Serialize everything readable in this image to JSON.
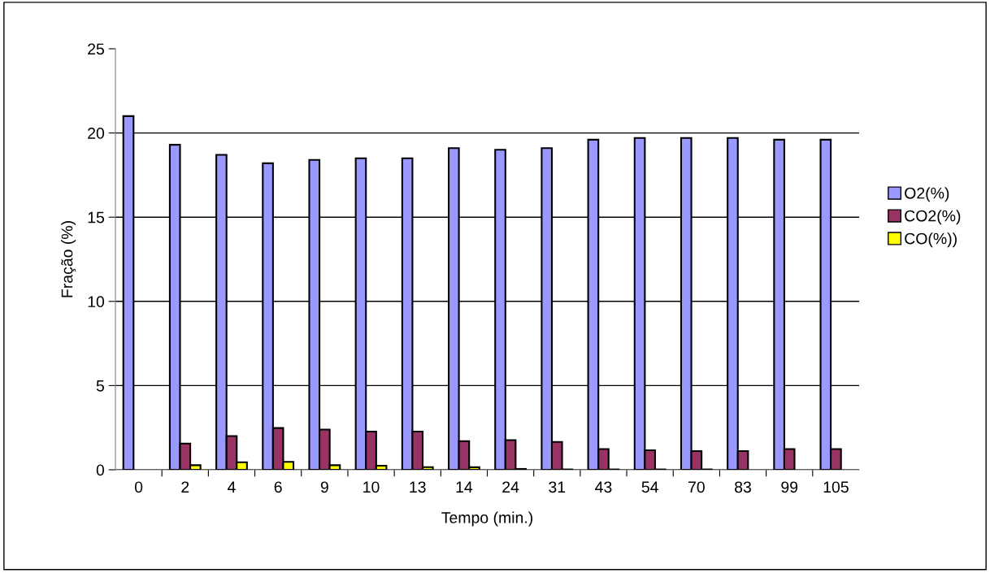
{
  "chart_data": {
    "type": "bar",
    "xlabel": "Tempo (min.)",
    "ylabel": "Fração (%)",
    "categories": [
      "0",
      "2",
      "4",
      "6",
      "9",
      "10",
      "13",
      "14",
      "24",
      "31",
      "43",
      "54",
      "70",
      "83",
      "99",
      "105"
    ],
    "series": [
      {
        "name": "O2(%)",
        "color": "#9999ff",
        "values": [
          21.0,
          19.3,
          18.7,
          18.2,
          18.4,
          18.5,
          18.5,
          19.1,
          19.0,
          19.1,
          19.6,
          19.7,
          19.7,
          19.7,
          19.6,
          19.6
        ]
      },
      {
        "name": "CO2(%)",
        "color": "#993366",
        "values": [
          null,
          1.56,
          2.0,
          2.48,
          2.39,
          2.27,
          2.27,
          1.7,
          1.76,
          1.65,
          1.23,
          1.16,
          1.11,
          1.11,
          1.23,
          1.23
        ]
      },
      {
        "name": "CO(%))",
        "color": "#ffff00",
        "values": [
          null,
          0.27,
          0.45,
          0.47,
          0.27,
          0.24,
          0.16,
          0.15,
          0.05,
          0.02,
          0.02,
          0.02,
          0.02,
          null,
          null,
          null
        ]
      }
    ],
    "ylim": [
      0,
      25
    ],
    "yticks": [
      0,
      5,
      10,
      15,
      20,
      25
    ],
    "grid": "y",
    "legend": "right"
  }
}
